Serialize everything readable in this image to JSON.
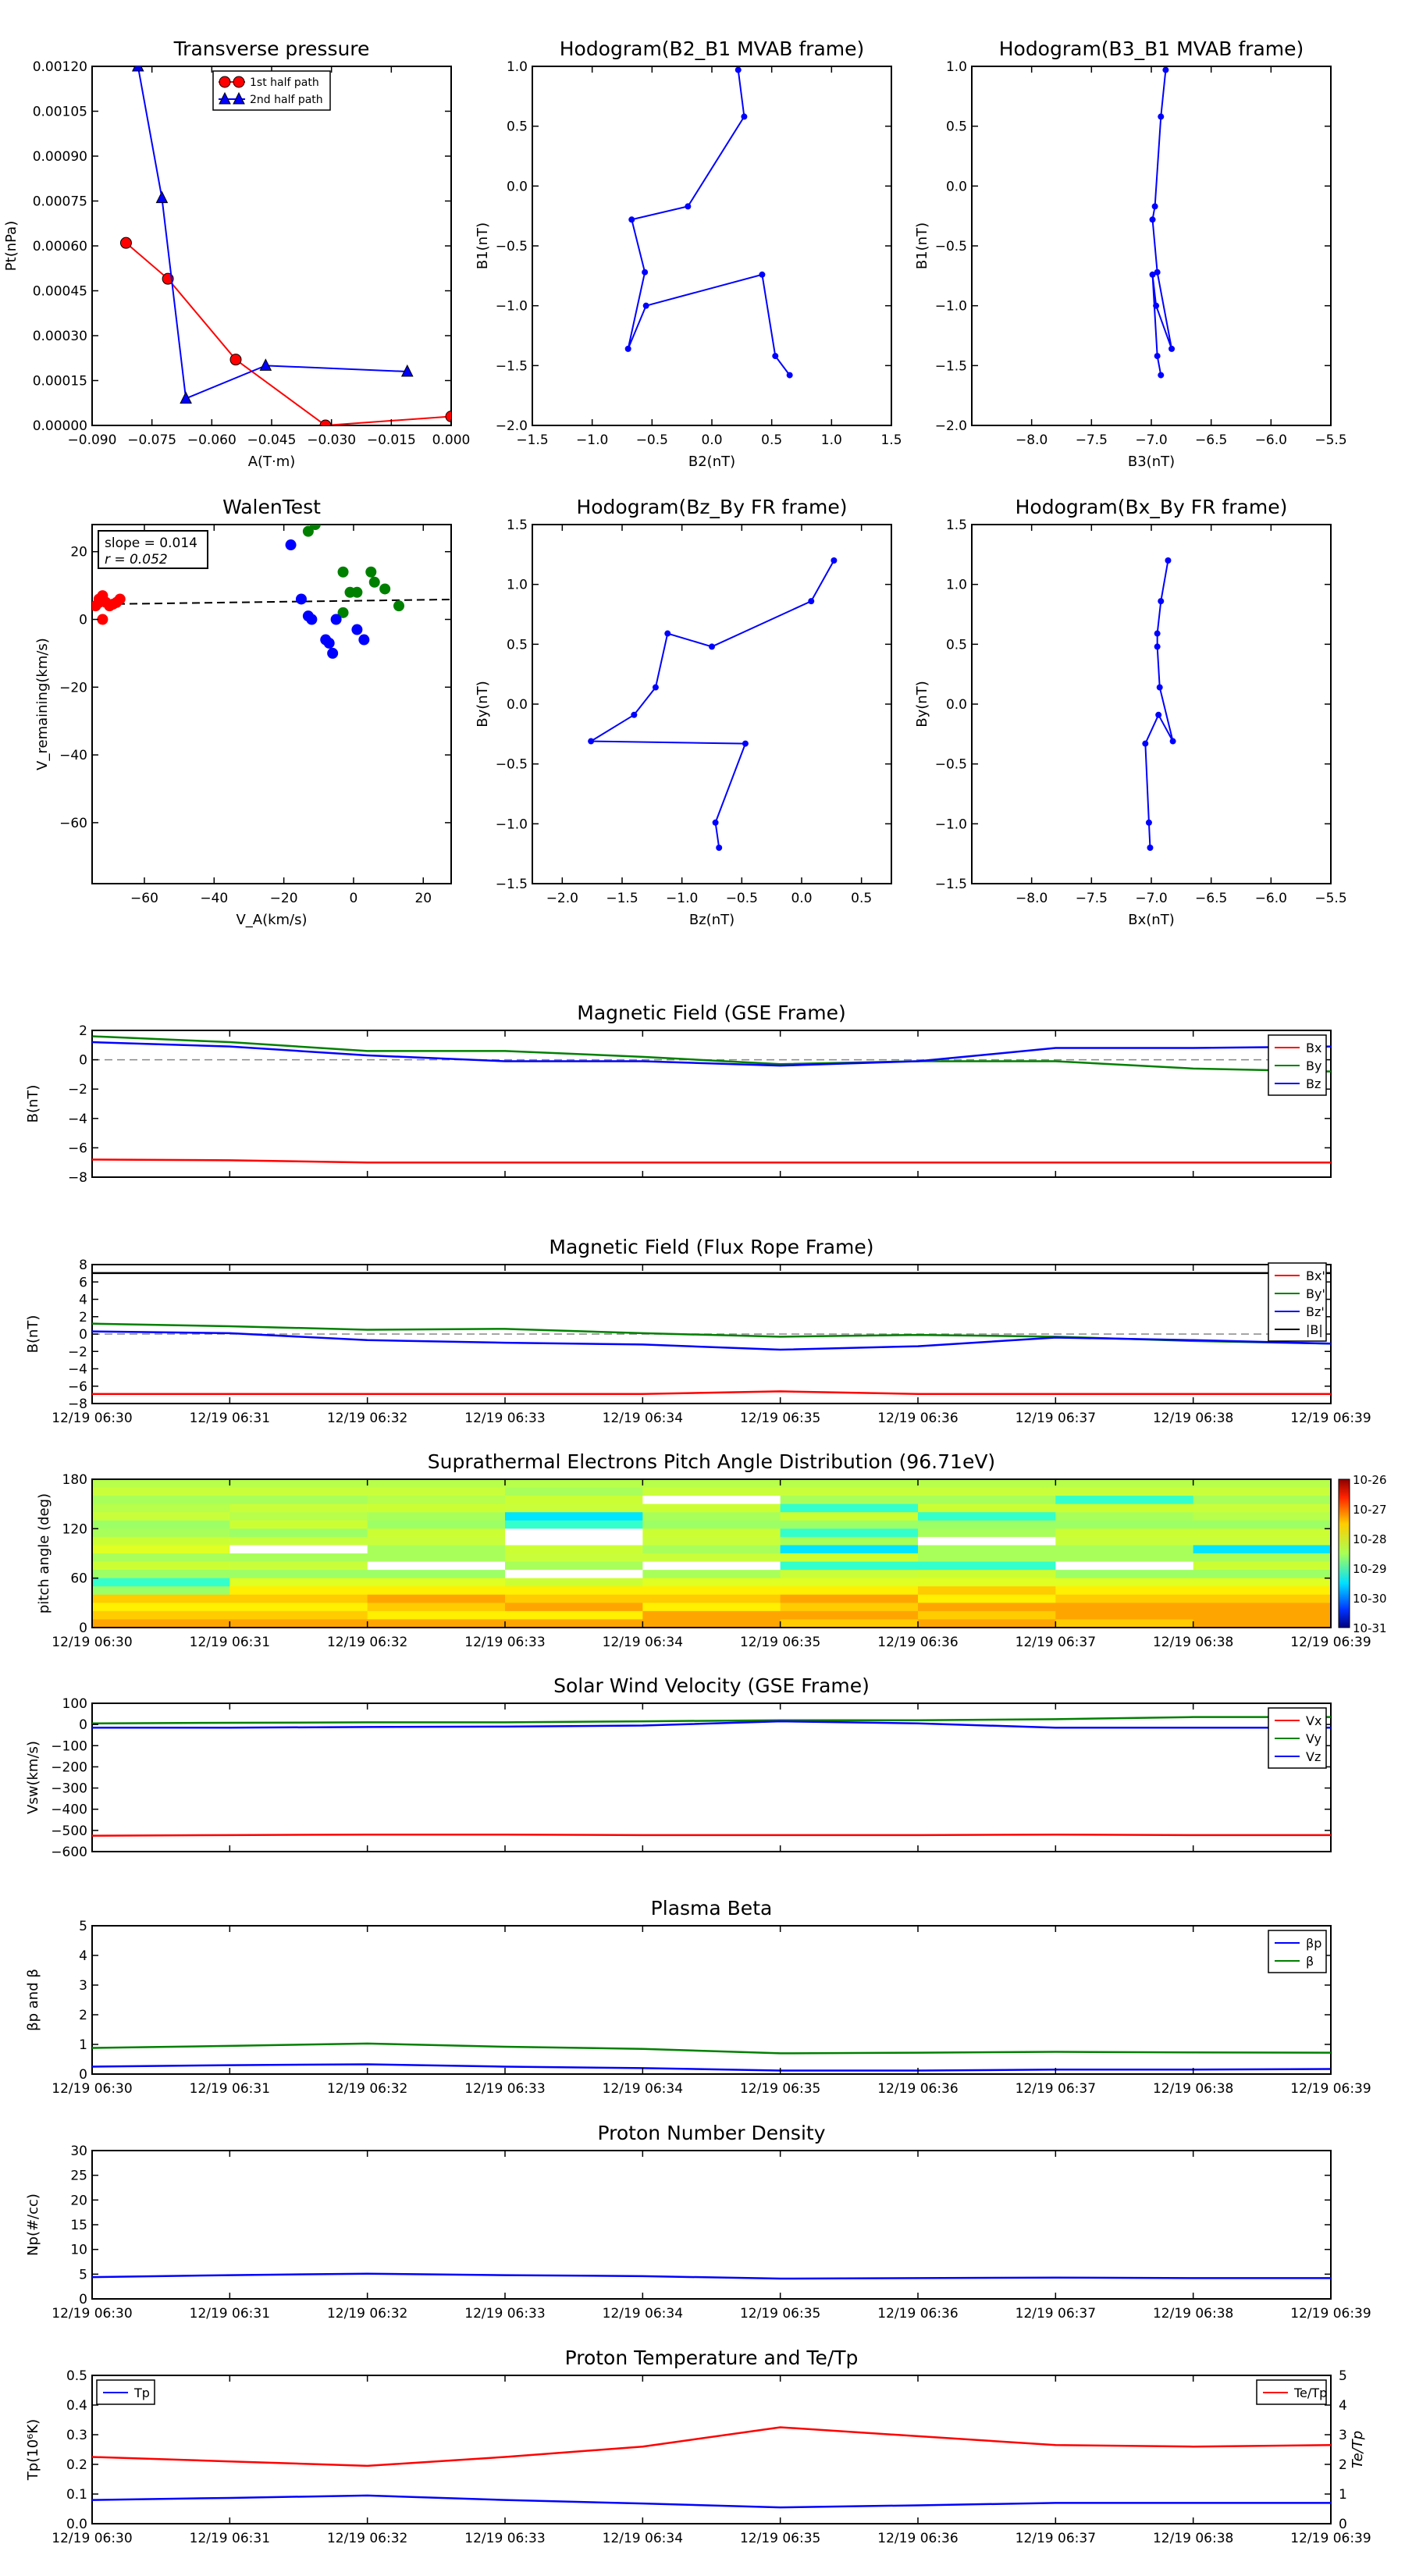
{
  "chart_data": [
    {
      "id": "tp",
      "type": "line",
      "title": "Transverse pressure",
      "xlabel": "A(T·m)",
      "ylabel": "Pt(nPa)",
      "xlim": [
        -0.09,
        0.0
      ],
      "ylim": [
        0,
        0.0012
      ],
      "xticks": [
        -0.09,
        -0.075,
        -0.06,
        -0.045,
        -0.03,
        -0.015,
        0.0
      ],
      "xtick_labels": [
        "−0.090",
        "−0.075",
        "−0.060",
        "−0.045",
        "−0.030",
        "−0.015",
        "0.000"
      ],
      "yticks": [
        0,
        0.00015,
        0.0003,
        0.00045,
        0.0006,
        0.00075,
        0.0009,
        0.00105,
        0.0012
      ],
      "ytick_labels": [
        "0.00000",
        "0.00015",
        "0.00030",
        "0.00045",
        "0.00060",
        "0.00075",
        "0.00090",
        "0.00105",
        "0.00120"
      ],
      "legend": "top-center",
      "series": [
        {
          "name": "1st half path",
          "color": "#ff0000",
          "marker": "circle",
          "x": [
            -0.0815,
            -0.071,
            -0.054,
            -0.0315,
            0.0
          ],
          "y": [
            0.00061,
            0.00049,
            0.00022,
            0.0,
            3e-05
          ]
        },
        {
          "name": "2nd half path",
          "color": "#0000ff",
          "marker": "triangle",
          "x": [
            -0.0785,
            -0.0725,
            -0.0665,
            -0.0465,
            -0.011
          ],
          "y": [
            0.0012,
            0.00076,
            9e-05,
            0.0002,
            0.00018
          ]
        }
      ]
    },
    {
      "id": "h1",
      "type": "line",
      "title": "Hodogram(B2_B1 MVAB frame)",
      "xlabel": "B2(nT)",
      "ylabel": "B1(nT)",
      "xlim": [
        -1.5,
        1.5
      ],
      "ylim": [
        -2.0,
        1.0
      ],
      "xticks": [
        -1.5,
        -1.0,
        -0.5,
        0.0,
        0.5,
        1.0,
        1.5
      ],
      "xtick_labels": [
        "−1.5",
        "−1.0",
        "−0.5",
        "0.0",
        "0.5",
        "1.0",
        "1.5"
      ],
      "yticks": [
        -2.0,
        -1.5,
        -1.0,
        -0.5,
        0.0,
        0.5,
        1.0
      ],
      "ytick_labels": [
        "−2.0",
        "−1.5",
        "−1.0",
        "−0.5",
        "0.0",
        "0.5",
        "1.0"
      ],
      "series": [
        {
          "name": "B",
          "color": "#0000ff",
          "marker": "dot",
          "x": [
            0.22,
            0.27,
            -0.2,
            -0.67,
            -0.56,
            -0.7,
            -0.55,
            0.42,
            0.53,
            0.65
          ],
          "y": [
            0.97,
            0.58,
            -0.17,
            -0.28,
            -0.72,
            -1.36,
            -1.0,
            -0.74,
            -1.42,
            -1.58
          ]
        }
      ]
    },
    {
      "id": "h2",
      "type": "line",
      "title": "Hodogram(B3_B1 MVAB frame)",
      "xlabel": "B3(nT)",
      "ylabel": "B1(nT)",
      "xlim": [
        -8.5,
        -5.5
      ],
      "ylim": [
        -2.0,
        1.0
      ],
      "xticks": [
        -8.0,
        -7.5,
        -7.0,
        -6.5,
        -6.0,
        -5.5
      ],
      "xtick_labels": [
        "−8.0",
        "−7.5",
        "−7.0",
        "−6.5",
        "−6.0",
        "−5.5"
      ],
      "yticks": [
        -2.0,
        -1.5,
        -1.0,
        -0.5,
        0.0,
        0.5,
        1.0
      ],
      "ytick_labels": [
        "−2.0",
        "−1.5",
        "−1.0",
        "−0.5",
        "0.0",
        "0.5",
        "1.0"
      ],
      "series": [
        {
          "name": "B",
          "color": "#0000ff",
          "marker": "dot",
          "x": [
            -6.88,
            -6.92,
            -6.97,
            -6.99,
            -6.95,
            -6.83,
            -6.96,
            -6.99,
            -6.95,
            -6.92
          ],
          "y": [
            0.97,
            0.58,
            -0.17,
            -0.28,
            -0.72,
            -1.36,
            -1.0,
            -0.74,
            -1.42,
            -1.58
          ]
        }
      ]
    },
    {
      "id": "walen",
      "type": "scatter",
      "title": "WalenTest",
      "xlabel": "V_A(km/s)",
      "ylabel": "V_remaining(km/s)",
      "xlim": [
        -75,
        28
      ],
      "ylim": [
        -78,
        28
      ],
      "xticks": [
        -60,
        -40,
        -20,
        0,
        20
      ],
      "xtick_labels": [
        "−60",
        "−40",
        "−20",
        "0",
        "20"
      ],
      "yticks": [
        -60,
        -40,
        -20,
        0,
        20
      ],
      "ytick_labels": [
        "−60",
        "−40",
        "−20",
        "0",
        "20"
      ],
      "annotations": [
        "slope = 0.014",
        "r = 0.052"
      ],
      "fit": {
        "slope": 0.014,
        "intercept": 5.5
      },
      "series": [
        {
          "name": "red",
          "color": "#ff0000",
          "x": [
            -74,
            -73,
            -72,
            -71,
            -70,
            -69,
            -68,
            -67,
            -73,
            -72
          ],
          "y": [
            4,
            6,
            7,
            5,
            4,
            4.5,
            5,
            6,
            5,
            0
          ]
        },
        {
          "name": "green",
          "color": "#008000",
          "x": [
            -13,
            -11,
            -3,
            -1,
            1,
            5,
            6,
            9,
            13,
            -3
          ],
          "y": [
            26,
            28,
            14,
            8,
            8,
            14,
            11,
            9,
            4,
            2
          ]
        },
        {
          "name": "blue",
          "color": "#0000ff",
          "x": [
            -18,
            -15,
            -13,
            -12,
            -8,
            -7,
            -6,
            -5,
            1,
            3
          ],
          "y": [
            22,
            6,
            1,
            0,
            -6,
            -7,
            -10,
            0,
            -3,
            -6
          ]
        }
      ]
    },
    {
      "id": "h3",
      "type": "line",
      "title": "Hodogram(Bz_By FR frame)",
      "xlabel": "Bz(nT)",
      "ylabel": "By(nT)",
      "xlim": [
        -2.25,
        0.75
      ],
      "ylim": [
        -1.5,
        1.5
      ],
      "xticks": [
        -2.0,
        -1.5,
        -1.0,
        -0.5,
        0.0,
        0.5
      ],
      "xtick_labels": [
        "−2.0",
        "−1.5",
        "−1.0",
        "−0.5",
        "0.0",
        "0.5"
      ],
      "yticks": [
        -1.5,
        -1.0,
        -0.5,
        0.0,
        0.5,
        1.0,
        1.5
      ],
      "ytick_labels": [
        "−1.5",
        "−1.0",
        "−0.5",
        "0.0",
        "0.5",
        "1.0",
        "1.5"
      ],
      "series": [
        {
          "name": "B",
          "color": "#0000ff",
          "marker": "dot",
          "x": [
            0.27,
            0.08,
            -0.75,
            -1.12,
            -1.22,
            -1.4,
            -1.76,
            -0.47,
            -0.72,
            -0.69
          ],
          "y": [
            1.2,
            0.86,
            0.48,
            0.59,
            0.14,
            -0.09,
            -0.31,
            -0.33,
            -0.99,
            -1.2
          ]
        }
      ]
    },
    {
      "id": "h4",
      "type": "line",
      "title": "Hodogram(Bx_By FR frame)",
      "xlabel": "Bx(nT)",
      "ylabel": "By(nT)",
      "xlim": [
        -8.5,
        -5.5
      ],
      "ylim": [
        -1.5,
        1.5
      ],
      "xticks": [
        -8.0,
        -7.5,
        -7.0,
        -6.5,
        -6.0,
        -5.5
      ],
      "xtick_labels": [
        "−8.0",
        "−7.5",
        "−7.0",
        "−6.5",
        "−6.0",
        "−5.5"
      ],
      "yticks": [
        -1.5,
        -1.0,
        -0.5,
        0.0,
        0.5,
        1.0,
        1.5
      ],
      "ytick_labels": [
        "−1.5",
        "−1.0",
        "−0.5",
        "0.0",
        "0.5",
        "1.0",
        "1.5"
      ],
      "series": [
        {
          "name": "B",
          "color": "#0000ff",
          "marker": "dot",
          "x": [
            -6.86,
            -6.92,
            -6.95,
            -6.95,
            -6.93,
            -6.82,
            -6.94,
            -7.05,
            -7.02,
            -7.01
          ],
          "y": [
            1.2,
            0.86,
            0.59,
            0.48,
            0.14,
            -0.31,
            -0.09,
            -0.33,
            -0.99,
            -1.2
          ]
        }
      ]
    },
    {
      "id": "mag_gse",
      "type": "line",
      "title": "Magnetic Field (GSE Frame)",
      "ylabel": "B(nT)",
      "ylim": [
        -8,
        2
      ],
      "yticks": [
        -8,
        -6,
        -4,
        -2,
        0,
        2
      ],
      "ytick_labels": [
        "−8",
        "−6",
        "−4",
        "−2",
        "0",
        "2"
      ],
      "x_minutes": [
        0,
        1,
        2,
        3,
        4,
        5,
        6,
        7,
        8,
        9
      ],
      "xtick_labels": [],
      "dashed_zero": true,
      "legend": "top-right",
      "series": [
        {
          "name": "Bx",
          "color": "#ff0000",
          "values": [
            -6.8,
            -6.85,
            -7.0,
            -7.0,
            -7.0,
            -7.0,
            -7.0,
            -7.0,
            -7.0,
            -7.0
          ]
        },
        {
          "name": "By",
          "color": "#008000",
          "values": [
            1.6,
            1.2,
            0.6,
            0.6,
            0.2,
            -0.3,
            -0.1,
            -0.1,
            -0.6,
            -0.8
          ]
        },
        {
          "name": "Bz",
          "color": "#0000ff",
          "values": [
            1.2,
            0.9,
            0.3,
            -0.1,
            -0.1,
            -0.4,
            -0.1,
            0.8,
            0.8,
            0.9
          ]
        }
      ]
    },
    {
      "id": "mag_fr",
      "type": "line",
      "title": "Magnetic Field (Flux Rope Frame)",
      "ylabel": "B(nT)",
      "ylim": [
        -8,
        8
      ],
      "yticks": [
        -8,
        -6,
        -4,
        -2,
        0,
        2,
        4,
        6,
        8
      ],
      "ytick_labels": [
        "−8",
        "−6",
        "−4",
        "−2",
        "0",
        "2",
        "4",
        "6",
        "8"
      ],
      "x_minutes": [
        0,
        1,
        2,
        3,
        4,
        5,
        6,
        7,
        8,
        9
      ],
      "dashed_zero": true,
      "legend": "top-right",
      "series": [
        {
          "name": "Bx'",
          "color": "#ff0000",
          "values": [
            -6.9,
            -6.9,
            -6.9,
            -6.9,
            -6.9,
            -6.6,
            -6.9,
            -6.9,
            -6.9,
            -6.9
          ]
        },
        {
          "name": "By'",
          "color": "#008000",
          "values": [
            1.2,
            0.9,
            0.5,
            0.6,
            0.1,
            -0.3,
            -0.1,
            -0.3,
            -0.8,
            -1.1
          ]
        },
        {
          "name": "Bz'",
          "color": "#0000ff",
          "values": [
            0.3,
            0.1,
            -0.7,
            -1.0,
            -1.2,
            -1.8,
            -1.4,
            -0.4,
            -0.7,
            -1.1
          ]
        },
        {
          "name": "|B|",
          "color": "#000000",
          "values": [
            7.02,
            7.02,
            7.02,
            7.02,
            7.02,
            7.02,
            7.02,
            7.02,
            7.02,
            7.02
          ]
        }
      ]
    },
    {
      "id": "pad",
      "type": "heatmap",
      "title": "Suprathermal Electrons Pitch Angle Distribution (96.71eV)",
      "ylabel": "pitch angle (deg)",
      "ylim": [
        0,
        180
      ],
      "yticks": [
        0,
        60,
        120,
        180
      ],
      "ytick_labels": [
        "0",
        "60",
        "120",
        "180"
      ],
      "colorbar_labels": [
        "10-26",
        "10-27",
        "10-28",
        "10-29",
        "10-30",
        "10-31"
      ]
    },
    {
      "id": "vsw",
      "type": "line",
      "title": "Solar Wind Velocity (GSE Frame)",
      "ylabel": "Vsw(km/s)",
      "ylim": [
        -600,
        100
      ],
      "yticks": [
        -600,
        -500,
        -400,
        -300,
        -200,
        -100,
        0,
        100
      ],
      "ytick_labels": [
        "−600",
        "−500",
        "−400",
        "−300",
        "−200",
        "−100",
        "0",
        "100"
      ],
      "x_minutes": [
        0,
        1,
        2,
        3,
        4,
        5,
        6,
        7,
        8,
        9
      ],
      "legend": "top-right",
      "series": [
        {
          "name": "Vx",
          "color": "#ff0000",
          "values": [
            -525,
            -522,
            -520,
            -520,
            -522,
            -522,
            -522,
            -520,
            -522,
            -522
          ]
        },
        {
          "name": "Vy",
          "color": "#008000",
          "values": [
            5,
            8,
            10,
            10,
            15,
            20,
            20,
            25,
            35,
            35
          ]
        },
        {
          "name": "Vz",
          "color": "#0000ff",
          "values": [
            -15,
            -15,
            -12,
            -10,
            -5,
            15,
            5,
            -15,
            -15,
            -15
          ]
        }
      ]
    },
    {
      "id": "beta",
      "type": "line",
      "title": "Plasma Beta",
      "ylabel": "βp and β",
      "ylim": [
        0,
        5
      ],
      "yticks": [
        0,
        1,
        2,
        3,
        4,
        5
      ],
      "ytick_labels": [
        "0",
        "1",
        "2",
        "3",
        "4",
        "5"
      ],
      "x_minutes": [
        0,
        1,
        2,
        3,
        4,
        5,
        6,
        7,
        8,
        9
      ],
      "xtick_labels": [
        "12/19 06:30",
        "12/19 06:31",
        "12/19 06:32",
        "12/19 06:33",
        "12/19 06:34",
        "12/19 06:35",
        "12/19 06:36",
        "12/19 06:37",
        "12/19 06:38",
        "12/19 06:39"
      ],
      "legend": "top-right",
      "series": [
        {
          "name": "βp",
          "color": "#0000ff",
          "values": [
            0.25,
            0.3,
            0.33,
            0.25,
            0.2,
            0.12,
            0.12,
            0.15,
            0.15,
            0.17
          ]
        },
        {
          "name": "β",
          "color": "#008000",
          "values": [
            0.88,
            0.95,
            1.03,
            0.92,
            0.85,
            0.7,
            0.72,
            0.75,
            0.73,
            0.72
          ]
        }
      ]
    },
    {
      "id": "np",
      "type": "line",
      "title": "Proton Number Density",
      "ylabel": "Np(#/cc)",
      "ylim": [
        0,
        30
      ],
      "yticks": [
        0,
        5,
        10,
        15,
        20,
        25,
        30
      ],
      "ytick_labels": [
        "0",
        "5",
        "10",
        "15",
        "20",
        "25",
        "30"
      ],
      "x_minutes": [
        0,
        1,
        2,
        3,
        4,
        5,
        6,
        7,
        8,
        9
      ],
      "series": [
        {
          "name": "Np",
          "color": "#0000ff",
          "values": [
            4.4,
            4.8,
            5.1,
            4.8,
            4.6,
            4.1,
            4.2,
            4.3,
            4.2,
            4.2
          ]
        }
      ]
    },
    {
      "id": "tp2",
      "type": "line",
      "title": "Proton Temperature and Te/Tp",
      "ylabel": "Tp(10⁶K)",
      "ylabel_right": "Te/Tp",
      "ylim": [
        0,
        0.5
      ],
      "ylim_right": [
        0,
        5
      ],
      "yticks": [
        0,
        0.1,
        0.2,
        0.3,
        0.4,
        0.5
      ],
      "ytick_labels": [
        "0.0",
        "0.1",
        "0.2",
        "0.3",
        "0.4",
        "0.5"
      ],
      "yticks_right": [
        0,
        1,
        2,
        3,
        4,
        5
      ],
      "ytick_labels_right": [
        "0",
        "1",
        "2",
        "3",
        "4",
        "5"
      ],
      "x_minutes": [
        0,
        1,
        2,
        3,
        4,
        5,
        6,
        7,
        8,
        9
      ],
      "series": [
        {
          "name": "Tp",
          "color": "#0000ff",
          "axis": "left",
          "values": [
            0.08,
            0.087,
            0.095,
            0.08,
            0.068,
            0.055,
            0.062,
            0.07,
            0.07,
            0.07
          ]
        },
        {
          "name": "Te/Tp",
          "color": "#ff0000",
          "axis": "right",
          "values": [
            2.25,
            2.1,
            1.95,
            2.25,
            2.6,
            3.25,
            2.95,
            2.65,
            2.6,
            2.65
          ]
        }
      ]
    }
  ],
  "time_labels": [
    "12/19 06:30",
    "12/19 06:31",
    "12/19 06:32",
    "12/19 06:33",
    "12/19 06:34",
    "12/19 06:35",
    "12/19 06:36",
    "12/19 06:37",
    "12/19 06:38",
    "12/19 06:39"
  ]
}
